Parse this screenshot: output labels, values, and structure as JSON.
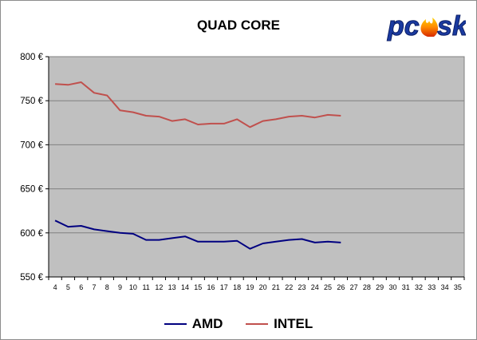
{
  "chart_data": {
    "type": "line",
    "title": "QUAD CORE",
    "xlabel": "",
    "ylabel": "",
    "x_ticks": [
      4,
      5,
      6,
      7,
      8,
      9,
      10,
      11,
      12,
      13,
      14,
      15,
      16,
      17,
      18,
      19,
      20,
      21,
      22,
      23,
      24,
      25,
      26,
      27,
      28,
      29,
      30,
      31,
      32,
      33,
      34,
      35
    ],
    "x": [
      4,
      5,
      6,
      7,
      8,
      9,
      10,
      11,
      12,
      13,
      14,
      15,
      16,
      17,
      18,
      19,
      20,
      21,
      22,
      23,
      24,
      25,
      26
    ],
    "ylim": [
      550,
      800
    ],
    "y_ticks": [
      "550 €",
      "600 €",
      "650 €",
      "700 €",
      "750 €",
      "800 €"
    ],
    "grid": true,
    "legend_position": "bottom",
    "series": [
      {
        "name": "AMD",
        "color": "#000080",
        "values": [
          614,
          607,
          608,
          604,
          602,
          600,
          599,
          592,
          592,
          594,
          596,
          590,
          590,
          590,
          591,
          582,
          588,
          590,
          592,
          593,
          589,
          590,
          589
        ]
      },
      {
        "name": "INTEL",
        "color": "#c0504d",
        "values": [
          769,
          768,
          771,
          759,
          756,
          739,
          737,
          733,
          732,
          727,
          729,
          723,
          724,
          724,
          729,
          720,
          727,
          729,
          732,
          733,
          731,
          734,
          733
        ]
      }
    ]
  },
  "logo": {
    "text": "pcsk"
  },
  "colors": {
    "plot_bg": "#c0c0c0",
    "grid": "#808080"
  }
}
